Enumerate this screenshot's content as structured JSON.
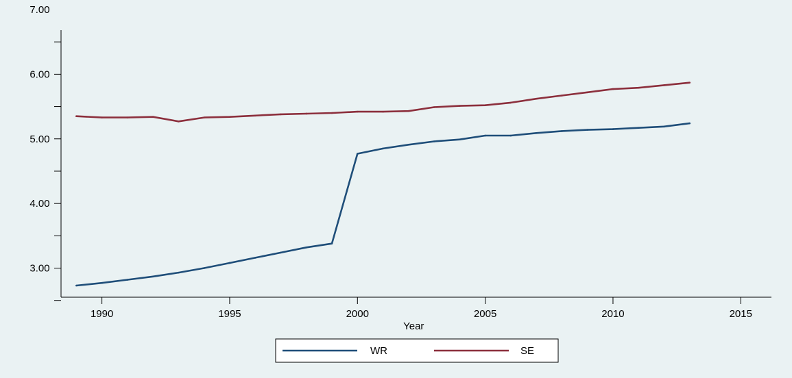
{
  "chart_data": {
    "type": "line",
    "title": "",
    "xlabel": "Year",
    "ylabel": "",
    "xlim": [
      1988.4,
      2016.2
    ],
    "ylim": [
      2.55,
      7.0
    ],
    "x_ticks": [
      1990,
      1995,
      2000,
      2005,
      2010,
      2015
    ],
    "x_tick_labels": [
      "1990",
      "1995",
      "2000",
      "2005",
      "2010",
      "2015"
    ],
    "y_major_ticks": [
      3.0,
      4.0,
      5.0,
      6.0,
      7.0
    ],
    "y_tick_labels": [
      "3.00",
      "4.00",
      "5.00",
      "6.00",
      "7.00"
    ],
    "y_minor_ticks": [
      2.5,
      3.5,
      4.5,
      5.5,
      6.5
    ],
    "grid": false,
    "legend_position": "bottom-center",
    "x": [
      1989,
      1990,
      1991,
      1992,
      1993,
      1994,
      1995,
      1996,
      1997,
      1998,
      1999,
      2000,
      2001,
      2002,
      2003,
      2004,
      2005,
      2006,
      2007,
      2008,
      2009,
      2010,
      2011,
      2012,
      2013
    ],
    "series": [
      {
        "name": "WR",
        "color": "#1f4e79",
        "values": [
          2.73,
          2.77,
          2.82,
          2.87,
          2.93,
          3.0,
          3.08,
          3.16,
          3.24,
          3.32,
          3.38,
          4.77,
          4.85,
          4.91,
          4.96,
          4.99,
          5.05,
          5.05,
          5.09,
          5.12,
          5.14,
          5.15,
          5.17,
          5.19,
          5.24
        ]
      },
      {
        "name": "SE",
        "color": "#8c2f3c",
        "values": [
          5.35,
          5.33,
          5.33,
          5.34,
          5.27,
          5.33,
          5.34,
          5.36,
          5.38,
          5.39,
          5.4,
          5.42,
          5.42,
          5.43,
          5.49,
          5.51,
          5.52,
          5.56,
          5.62,
          5.67,
          5.72,
          5.77,
          5.79,
          5.83,
          5.87
        ]
      }
    ]
  }
}
